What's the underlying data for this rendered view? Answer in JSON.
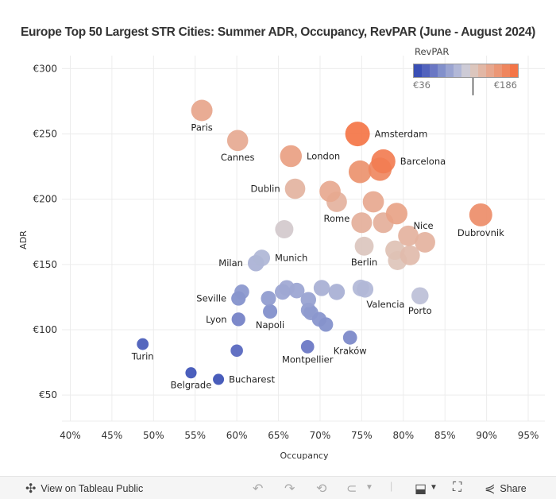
{
  "title": "Europe Top 50 Largest STR Cities: Summer ADR, Occupancy, RevPAR (June - August 2024)",
  "legend": {
    "title": "RevPAR",
    "min_label": "€36",
    "max_label": "€186",
    "marker_value": 120,
    "colors": [
      "#3a4fb5",
      "#5263bd",
      "#6a77c4",
      "#8290cb",
      "#9aa4d1",
      "#b2b8d7",
      "#cdcbd6",
      "#dcc6bd",
      "#e2b7a5",
      "#e7a78e",
      "#eb9776",
      "#ef865e",
      "#f47547"
    ]
  },
  "chart_data": {
    "type": "scatter",
    "title": "Europe Top 50 Largest STR Cities: Summer ADR, Occupancy, RevPAR (June - August 2024)",
    "xlabel": "Occupancy",
    "ylabel": "ADR",
    "xlim": [
      39,
      97
    ],
    "ylim": [
      30,
      310
    ],
    "xticks": [
      40,
      45,
      50,
      55,
      60,
      65,
      70,
      75,
      80,
      85,
      90,
      95
    ],
    "xtick_labels": [
      "40%",
      "45%",
      "50%",
      "55%",
      "60%",
      "65%",
      "70%",
      "75%",
      "80%",
      "85%",
      "90%",
      "95%"
    ],
    "yticks": [
      50,
      100,
      150,
      200,
      250,
      300
    ],
    "ytick_labels": [
      "€50",
      "€100",
      "€150",
      "€200",
      "€250",
      "€300"
    ],
    "grid": true,
    "size_encodes": "RevPAR",
    "color_encodes": "RevPAR",
    "color_range": [
      36,
      186
    ],
    "points": [
      {
        "label": "Paris",
        "x": 55.8,
        "y": 268,
        "revpar": 150,
        "label_pos": "below"
      },
      {
        "label": "Cannes",
        "x": 60.1,
        "y": 245,
        "revpar": 147,
        "label_pos": "below"
      },
      {
        "label": "London",
        "x": 66.5,
        "y": 233,
        "revpar": 155,
        "label_pos": "right"
      },
      {
        "label": "Dublin",
        "x": 67.0,
        "y": 208,
        "revpar": 139,
        "label_pos": "left"
      },
      {
        "label": "Amsterdam",
        "x": 74.5,
        "y": 250,
        "revpar": 186,
        "label_pos": "right"
      },
      {
        "label": "Barcelona",
        "x": 77.6,
        "y": 229,
        "revpar": 180,
        "label_pos": "right"
      },
      {
        "label": "",
        "x": 77.2,
        "y": 223,
        "revpar": 172
      },
      {
        "label": "",
        "x": 74.8,
        "y": 221,
        "revpar": 165
      },
      {
        "label": "",
        "x": 71.2,
        "y": 206,
        "revpar": 148
      },
      {
        "label": "Rome",
        "x": 72.0,
        "y": 198,
        "revpar": 140,
        "label_pos": "below"
      },
      {
        "label": "",
        "x": 76.4,
        "y": 198,
        "revpar": 148
      },
      {
        "label": "",
        "x": 79.2,
        "y": 189,
        "revpar": 152
      },
      {
        "label": "",
        "x": 75.0,
        "y": 182,
        "revpar": 142
      },
      {
        "label": "",
        "x": 77.6,
        "y": 182,
        "revpar": 142
      },
      {
        "label": "Nice",
        "x": 82.6,
        "y": 167,
        "revpar": 140,
        "label_pos": "above-right"
      },
      {
        "label": "",
        "x": 80.6,
        "y": 172,
        "revpar": 140
      },
      {
        "label": "",
        "x": 79.0,
        "y": 161,
        "revpar": 128
      },
      {
        "label": "",
        "x": 80.8,
        "y": 157,
        "revpar": 133
      },
      {
        "label": "",
        "x": 79.3,
        "y": 153,
        "revpar": 125
      },
      {
        "label": "Berlin",
        "x": 75.3,
        "y": 164,
        "revpar": 123,
        "label_pos": "below"
      },
      {
        "label": "Dubrovnik",
        "x": 89.3,
        "y": 188,
        "revpar": 168,
        "label_pos": "below"
      },
      {
        "label": "",
        "x": 65.7,
        "y": 177,
        "revpar": 116
      },
      {
        "label": "Milan",
        "x": 62.3,
        "y": 151,
        "revpar": 94,
        "label_pos": "left"
      },
      {
        "label": "Munich",
        "x": 63.0,
        "y": 155,
        "revpar": 97,
        "label_pos": "right"
      },
      {
        "label": "Seville",
        "x": 60.2,
        "y": 124,
        "revpar": 73,
        "label_pos": "left"
      },
      {
        "label": "",
        "x": 60.6,
        "y": 129,
        "revpar": 77
      },
      {
        "label": "Lyon",
        "x": 60.2,
        "y": 108,
        "revpar": 65,
        "label_pos": "left"
      },
      {
        "label": "",
        "x": 60.0,
        "y": 84,
        "revpar": 50
      },
      {
        "label": "Napoli",
        "x": 64.0,
        "y": 114,
        "revpar": 72,
        "label_pos": "below"
      },
      {
        "label": "",
        "x": 63.8,
        "y": 124,
        "revpar": 80
      },
      {
        "label": "",
        "x": 65.5,
        "y": 129,
        "revpar": 86
      },
      {
        "label": "",
        "x": 66.0,
        "y": 132,
        "revpar": 88
      },
      {
        "label": "",
        "x": 67.2,
        "y": 130,
        "revpar": 86
      },
      {
        "label": "",
        "x": 68.6,
        "y": 123,
        "revpar": 84
      },
      {
        "label": "",
        "x": 68.6,
        "y": 115,
        "revpar": 80
      },
      {
        "label": "",
        "x": 68.9,
        "y": 113,
        "revpar": 78
      },
      {
        "label": "",
        "x": 69.9,
        "y": 108,
        "revpar": 75
      },
      {
        "label": "",
        "x": 70.7,
        "y": 104,
        "revpar": 73
      },
      {
        "label": "",
        "x": 70.2,
        "y": 132,
        "revpar": 93
      },
      {
        "label": "",
        "x": 72.0,
        "y": 129,
        "revpar": 93
      },
      {
        "label": "Valencia",
        "x": 74.9,
        "y": 132,
        "revpar": 98,
        "label_pos": "below-right"
      },
      {
        "label": "",
        "x": 75.4,
        "y": 131,
        "revpar": 98
      },
      {
        "label": "Montpellier",
        "x": 68.5,
        "y": 87,
        "revpar": 60,
        "label_pos": "below"
      },
      {
        "label": "Kraków",
        "x": 73.6,
        "y": 94,
        "revpar": 69,
        "label_pos": "below"
      },
      {
        "label": "Porto",
        "x": 82.0,
        "y": 126,
        "revpar": 103,
        "label_pos": "below"
      },
      {
        "label": "Turin",
        "x": 48.7,
        "y": 89,
        "revpar": 43,
        "label_pos": "below"
      },
      {
        "label": "Belgrade",
        "x": 54.5,
        "y": 67,
        "revpar": 37,
        "label_pos": "below"
      },
      {
        "label": "Bucharest",
        "x": 57.8,
        "y": 62,
        "revpar": 36,
        "label_pos": "right"
      }
    ]
  },
  "footer": {
    "view_label": "View on Tableau Public",
    "share_label": "Share"
  }
}
